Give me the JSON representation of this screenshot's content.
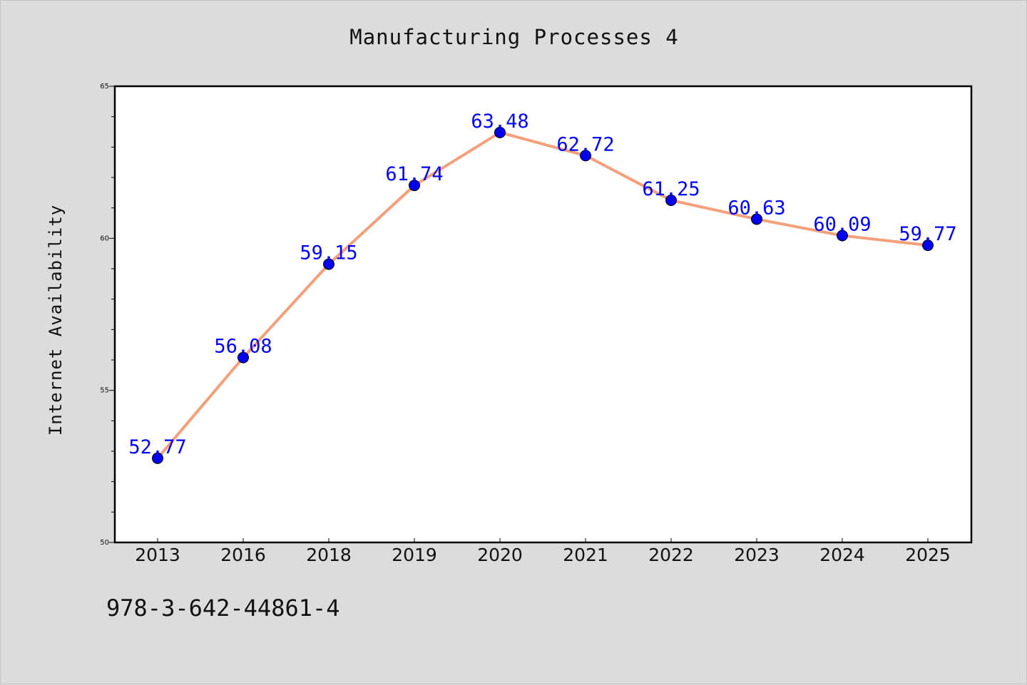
{
  "isbn": "978-3-642-44861-4",
  "chart_data": {
    "type": "line",
    "title": "Manufacturing Processes 4",
    "xlabel": "",
    "ylabel": "Internet Availability",
    "categories": [
      "2013",
      "2016",
      "2018",
      "2019",
      "2020",
      "2021",
      "2022",
      "2023",
      "2024",
      "2025"
    ],
    "series": [
      {
        "values": [
          52.77,
          56.08,
          59.15,
          61.74,
          63.48,
          62.72,
          61.25,
          60.63,
          60.09,
          59.77
        ],
        "labels": [
          "52.77",
          "56.08",
          "59.15",
          "61.74",
          "63.48",
          "62.72",
          "61.25",
          "60.63",
          "60.09",
          "59.77"
        ],
        "line_color": "#f5a07a",
        "marker_color": "#0000ee"
      }
    ],
    "ylim": [
      50,
      65
    ],
    "yticks": [
      50,
      55,
      60,
      65
    ],
    "grid": false,
    "legend": "none"
  }
}
